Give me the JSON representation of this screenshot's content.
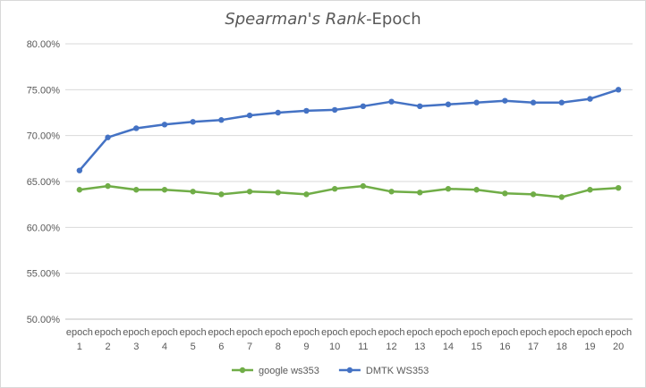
{
  "chart_data": {
    "type": "line",
    "title_italic": "Spearman's Rank",
    "title_rest": "-Epoch",
    "xlabel": "",
    "ylabel": "",
    "categories": [
      [
        "epoch",
        "1"
      ],
      [
        "epoch",
        "2"
      ],
      [
        "epoch",
        "3"
      ],
      [
        "epoch",
        "4"
      ],
      [
        "epoch",
        "5"
      ],
      [
        "epoch",
        "6"
      ],
      [
        "epoch",
        "7"
      ],
      [
        "epoch",
        "8"
      ],
      [
        "epoch",
        "9"
      ],
      [
        "epoch",
        "10"
      ],
      [
        "epoch",
        "11"
      ],
      [
        "epoch",
        "12"
      ],
      [
        "epoch",
        "13"
      ],
      [
        "epoch",
        "14"
      ],
      [
        "epoch",
        "15"
      ],
      [
        "epoch",
        "16"
      ],
      [
        "epoch",
        "17"
      ],
      [
        "epoch",
        "18"
      ],
      [
        "epoch",
        "19"
      ],
      [
        "epoch",
        "20"
      ]
    ],
    "ylim": [
      0.5,
      0.8
    ],
    "yticks": [
      0.5,
      0.55,
      0.6,
      0.65,
      0.7,
      0.75,
      0.8
    ],
    "ytick_labels": [
      "50.00%",
      "55.00%",
      "60.00%",
      "65.00%",
      "70.00%",
      "75.00%",
      "80.00%"
    ],
    "grid": true,
    "legend_position": "bottom",
    "series": [
      {
        "name": "google ws353",
        "color": "#70ad47",
        "values": [
          0.641,
          0.645,
          0.641,
          0.641,
          0.639,
          0.636,
          0.639,
          0.638,
          0.636,
          0.642,
          0.645,
          0.639,
          0.638,
          0.642,
          0.641,
          0.637,
          0.636,
          0.633,
          0.641,
          0.643
        ]
      },
      {
        "name": "DMTK WS353",
        "color": "#4472c4",
        "values": [
          0.662,
          0.698,
          0.708,
          0.712,
          0.715,
          0.717,
          0.722,
          0.725,
          0.727,
          0.728,
          0.732,
          0.737,
          0.732,
          0.734,
          0.736,
          0.738,
          0.736,
          0.736,
          0.74,
          0.75
        ]
      }
    ]
  }
}
